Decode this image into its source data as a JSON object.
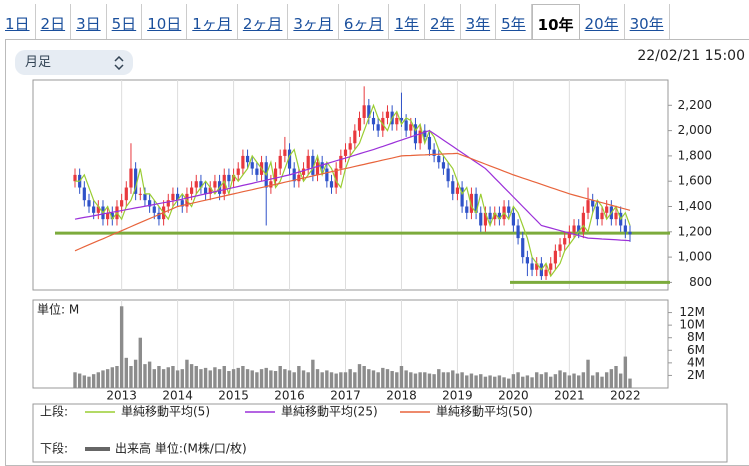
{
  "tabs": [
    "1日",
    "2日",
    "3日",
    "5日",
    "10日",
    "1ヶ月",
    "2ヶ月",
    "3ヶ月",
    "6ヶ月",
    "1年",
    "2年",
    "3年",
    "5年",
    "10年",
    "20年",
    "30年"
  ],
  "active_tab": 13,
  "timeframe": "月足",
  "timestamp": "22/02/21 15:00",
  "legend": {
    "upper_label": "上段:",
    "lower_label": "下段:"
  },
  "chart_data": [
    {
      "type": "candlestick",
      "categories": [
        null,
        null,
        null,
        null,
        null,
        null,
        null,
        null,
        null,
        null,
        "2013",
        null,
        null,
        null,
        null,
        null,
        null,
        null,
        null,
        null,
        null,
        null,
        "2014",
        null,
        null,
        null,
        null,
        null,
        null,
        null,
        null,
        null,
        null,
        null,
        "2015",
        null,
        null,
        null,
        null,
        null,
        null,
        null,
        null,
        null,
        null,
        null,
        "2016",
        null,
        null,
        null,
        null,
        null,
        null,
        null,
        null,
        null,
        null,
        null,
        "2017",
        null,
        null,
        null,
        null,
        null,
        null,
        null,
        null,
        null,
        null,
        null,
        "2018",
        null,
        null,
        null,
        null,
        null,
        null,
        null,
        null,
        null,
        null,
        null,
        "2019",
        null,
        null,
        null,
        null,
        null,
        null,
        null,
        null,
        null,
        null,
        null,
        "2020",
        null,
        null,
        null,
        null,
        null,
        null,
        null,
        null,
        null,
        null,
        null,
        "2021",
        null,
        null,
        null,
        null,
        null,
        null,
        null,
        null,
        null,
        null,
        null,
        "2022",
        null
      ],
      "open": [
        1600,
        1650,
        1550,
        1450,
        1400,
        1350,
        1400,
        1300,
        1350,
        1300,
        1400,
        1450,
        1550,
        1700,
        1500,
        1500,
        1450,
        1400,
        1350,
        1300,
        1400,
        1450,
        1500,
        1450,
        1400,
        1500,
        1550,
        1600,
        1550,
        1500,
        1550,
        1600,
        1500,
        1650,
        1600,
        1650,
        1700,
        1800,
        1750,
        1700,
        1650,
        1750,
        1550,
        1600,
        1700,
        1800,
        1850,
        1700,
        1600,
        1650,
        1700,
        1800,
        1650,
        1750,
        1700,
        1600,
        1550,
        1700,
        1800,
        1850,
        1900,
        2000,
        2100,
        2200,
        2100,
        2050,
        2000,
        2100,
        2150,
        2050,
        2100,
        2080,
        2000,
        2050,
        1900,
        2000,
        1950,
        1850,
        1800,
        1750,
        1700,
        1600,
        1500,
        1550,
        1400,
        1350,
        1500,
        1350,
        1250,
        1350,
        1300,
        1350,
        1300,
        1400,
        1350,
        1250,
        1150,
        1000,
        950,
        900,
        950,
        850,
        900,
        950,
        1050,
        1100,
        1150,
        1200,
        1250,
        1200,
        1350,
        1450,
        1400,
        1300,
        1350,
        1400,
        1300,
        1350,
        1250,
        1200
      ],
      "high": [
        1700,
        1700,
        1600,
        1500,
        1450,
        1450,
        1450,
        1400,
        1400,
        1450,
        1500,
        1600,
        1900,
        1750,
        1550,
        1550,
        1500,
        1450,
        1400,
        1450,
        1500,
        1550,
        1550,
        1500,
        1550,
        1600,
        1650,
        1650,
        1600,
        1600,
        1650,
        1650,
        1700,
        1700,
        1700,
        1750,
        1850,
        1850,
        1800,
        1750,
        1800,
        1800,
        1650,
        1750,
        1850,
        1950,
        1900,
        1750,
        1700,
        1750,
        1850,
        1850,
        1800,
        1800,
        1750,
        1650,
        1750,
        1850,
        1900,
        1950,
        2050,
        2150,
        2350,
        2250,
        2150,
        2100,
        2150,
        2200,
        2200,
        2150,
        2300,
        2130,
        2100,
        2100,
        2050,
        2050,
        2000,
        1900,
        1850,
        1800,
        1750,
        1650,
        1600,
        1600,
        1450,
        1550,
        1550,
        1400,
        1400,
        1400,
        1400,
        1400,
        1450,
        1450,
        1400,
        1300,
        1200,
        1050,
        1000,
        1000,
        1000,
        950,
        1000,
        1100,
        1150,
        1200,
        1250,
        1300,
        1300,
        1400,
        1550,
        1500,
        1450,
        1400,
        1450,
        1450,
        1400,
        1400,
        1300,
        1250
      ],
      "low": [
        1550,
        1500,
        1400,
        1350,
        1300,
        1300,
        1250,
        1250,
        1250,
        1250,
        1350,
        1400,
        1500,
        1450,
        1450,
        1400,
        1350,
        1300,
        1250,
        1250,
        1350,
        1400,
        1400,
        1350,
        1350,
        1450,
        1500,
        1500,
        1450,
        1450,
        1500,
        1450,
        1450,
        1550,
        1550,
        1600,
        1650,
        1700,
        1650,
        1600,
        1600,
        1250,
        1500,
        1550,
        1650,
        1750,
        1650,
        1550,
        1550,
        1600,
        1650,
        1600,
        1600,
        1650,
        1550,
        1500,
        1500,
        1650,
        1750,
        1800,
        1850,
        1950,
        2050,
        2050,
        2000,
        1950,
        1950,
        2050,
        2000,
        2000,
        2030,
        1950,
        1950,
        1850,
        1850,
        1900,
        1800,
        1750,
        1700,
        1650,
        1550,
        1450,
        1450,
        1350,
        1300,
        1300,
        1300,
        1200,
        1200,
        1250,
        1250,
        1250,
        1250,
        1300,
        1200,
        1100,
        950,
        850,
        850,
        850,
        820,
        820,
        850,
        900,
        1000,
        1050,
        1100,
        1150,
        1150,
        1150,
        1300,
        1350,
        1250,
        1250,
        1300,
        1250,
        1250,
        1200,
        1150,
        1120
      ],
      "close": [
        1650,
        1550,
        1450,
        1400,
        1350,
        1400,
        1300,
        1350,
        1300,
        1400,
        1450,
        1550,
        1700,
        1500,
        1500,
        1450,
        1400,
        1350,
        1300,
        1400,
        1450,
        1500,
        1450,
        1400,
        1500,
        1550,
        1600,
        1550,
        1500,
        1550,
        1600,
        1500,
        1650,
        1600,
        1650,
        1700,
        1800,
        1750,
        1700,
        1650,
        1750,
        1550,
        1600,
        1700,
        1800,
        1850,
        1700,
        1600,
        1650,
        1700,
        1800,
        1650,
        1750,
        1700,
        1600,
        1550,
        1700,
        1800,
        1850,
        1900,
        2000,
        2100,
        2200,
        2100,
        2050,
        2000,
        2100,
        2150,
        2050,
        2100,
        2080,
        2000,
        2050,
        1900,
        2000,
        1950,
        1850,
        1800,
        1750,
        1700,
        1600,
        1500,
        1550,
        1400,
        1350,
        1500,
        1350,
        1250,
        1350,
        1300,
        1350,
        1300,
        1400,
        1350,
        1250,
        1150,
        1000,
        950,
        900,
        950,
        850,
        900,
        950,
        1050,
        1100,
        1150,
        1200,
        1250,
        1200,
        1350,
        1450,
        1400,
        1300,
        1350,
        1400,
        1300,
        1350,
        1250,
        1200,
        1180
      ],
      "up_color": "#e8383d",
      "down_color": "#2f52c8",
      "series": [
        {
          "name": "単純移動平均(5)",
          "color": "#9acd32",
          "values": [
            1600,
            1600,
            1650,
            1550,
            1450,
            1400,
            1350,
            1400,
            1300,
            1350,
            1300,
            1400,
            1450,
            1550,
            1700,
            1500,
            1500,
            1450,
            1400,
            1350,
            1300,
            1400,
            1450,
            1500,
            1450,
            1400,
            1500,
            1550,
            1600,
            1550,
            1500,
            1550,
            1600,
            1500,
            1650,
            1600,
            1650,
            1700,
            1800,
            1750,
            1700,
            1650,
            1750,
            1550,
            1600,
            1700,
            1800,
            1850,
            1700,
            1600,
            1650,
            1700,
            1800,
            1650,
            1750,
            1700,
            1600,
            1550,
            1700,
            1800,
            1850,
            1900,
            2000,
            2100,
            2200,
            2100,
            2050,
            2000,
            2100,
            2150,
            2050,
            2100,
            2080,
            2000,
            2050,
            1900,
            2000,
            1950,
            1850,
            1800,
            1750,
            1700,
            1600,
            1500,
            1550,
            1400,
            1350,
            1500,
            1350,
            1250,
            1350,
            1300,
            1350,
            1300,
            1400,
            1350,
            1250,
            1150,
            1000,
            950,
            900,
            950,
            850,
            900,
            950,
            1050,
            1100,
            1150,
            1200,
            1250,
            1200,
            1350,
            1450,
            1400,
            1300,
            1350,
            1400,
            1300,
            1350,
            1250
          ]
        },
        {
          "name": "単純移動平均(25)",
          "color": "#9b30d9",
          "values": [
            1300,
            1307,
            1314,
            1320,
            1327,
            1334,
            1341,
            1348,
            1355,
            1361,
            1368,
            1375,
            1382,
            1389,
            1395,
            1402,
            1409,
            1416,
            1423,
            1430,
            1436,
            1443,
            1450,
            1458,
            1467,
            1475,
            1483,
            1492,
            1500,
            1508,
            1517,
            1525,
            1533,
            1542,
            1550,
            1558,
            1567,
            1575,
            1583,
            1592,
            1600,
            1608,
            1617,
            1625,
            1633,
            1642,
            1650,
            1661,
            1672,
            1683,
            1694,
            1706,
            1717,
            1728,
            1739,
            1750,
            1761,
            1772,
            1783,
            1794,
            1806,
            1817,
            1828,
            1839,
            1850,
            1863,
            1875,
            1888,
            1900,
            1913,
            1925,
            1938,
            1950,
            1963,
            1975,
            1988,
            2000,
            1975,
            1950,
            1925,
            1900,
            1875,
            1850,
            1825,
            1800,
            1775,
            1750,
            1725,
            1700,
            1663,
            1625,
            1588,
            1550,
            1513,
            1475,
            1438,
            1400,
            1363,
            1325,
            1288,
            1250,
            1240,
            1230,
            1220,
            1210,
            1200,
            1190,
            1180,
            1170,
            1160,
            1150,
            1148,
            1146,
            1143,
            1141,
            1139,
            1137,
            1134,
            1132,
            1130
          ]
        },
        {
          "name": "単純移動平均(50)",
          "color": "#e8643c",
          "values": [
            1050,
            1066,
            1082,
            1098,
            1114,
            1130,
            1145,
            1161,
            1177,
            1193,
            1209,
            1225,
            1241,
            1257,
            1273,
            1289,
            1305,
            1320,
            1336,
            1352,
            1368,
            1384,
            1400,
            1408,
            1417,
            1425,
            1433,
            1442,
            1450,
            1458,
            1467,
            1475,
            1483,
            1492,
            1500,
            1508,
            1517,
            1525,
            1533,
            1542,
            1550,
            1558,
            1567,
            1575,
            1583,
            1592,
            1600,
            1608,
            1617,
            1625,
            1633,
            1642,
            1650,
            1658,
            1667,
            1675,
            1683,
            1692,
            1700,
            1708,
            1717,
            1725,
            1733,
            1742,
            1750,
            1758,
            1767,
            1775,
            1783,
            1792,
            1800,
            1802,
            1803,
            1805,
            1807,
            1808,
            1810,
            1812,
            1813,
            1815,
            1817,
            1818,
            1820,
            1806,
            1792,
            1778,
            1763,
            1749,
            1735,
            1721,
            1707,
            1693,
            1678,
            1664,
            1650,
            1638,
            1625,
            1613,
            1600,
            1588,
            1575,
            1563,
            1550,
            1538,
            1525,
            1513,
            1500,
            1490,
            1480,
            1470,
            1460,
            1450,
            1440,
            1430,
            1420,
            1410,
            1400,
            1390,
            1380,
            1370
          ]
        }
      ],
      "ylim": [
        740,
        2400
      ],
      "yticks": [
        800,
        {
          "value": 1000,
          "label": "1,000"
        },
        {
          "value": 1200,
          "label": "1,200"
        },
        {
          "value": 1400,
          "label": "1,400"
        },
        {
          "value": 1600,
          "label": "1,600"
        },
        {
          "value": 1800,
          "label": "1,800"
        },
        {
          "value": 2000,
          "label": "2,000"
        },
        {
          "value": 2200,
          "label": "2,200"
        }
      ],
      "hlines": [
        1190,
        800
      ],
      "hline_color": "#7cab3c",
      "grid": true
    },
    {
      "type": "bar",
      "title": "単位: M",
      "series": [
        {
          "name": "出来高 単位:(M株/口/枚)",
          "color": "#8c8c8c",
          "values": [
            2.5,
            2.3,
            2,
            1.8,
            2.2,
            2.5,
            2.8,
            3,
            3.3,
            3.5,
            13,
            4.8,
            3.5,
            4.5,
            8,
            3.8,
            4.2,
            3,
            3.5,
            3,
            3.3,
            3.5,
            2.8,
            3,
            4.5,
            3.8,
            3.5,
            3,
            3.2,
            2.8,
            3.3,
            3,
            3.5,
            2.7,
            3,
            3.2,
            3.5,
            3,
            2.8,
            2.5,
            3,
            3.2,
            2.8,
            2.7,
            3.5,
            3,
            2.8,
            2.5,
            3.5,
            2.8,
            2.5,
            4.5,
            3,
            2.5,
            2.8,
            2.5,
            2.3,
            2.5,
            2.5,
            3,
            2.5,
            3.8,
            3.5,
            3,
            2.8,
            2.5,
            3.2,
            3,
            2.7,
            2.5,
            3.5,
            2.8,
            2.5,
            2.3,
            2.5,
            2.5,
            2.3,
            2.2,
            3,
            2.5,
            2.5,
            2.8,
            2.3,
            2.5,
            2,
            2.3,
            2,
            2.2,
            1.8,
            2,
            1.8,
            2,
            1.7,
            1.5,
            2.2,
            2.5,
            1.8,
            2,
            1.7,
            2.5,
            2.2,
            2.5,
            1.8,
            2.2,
            2.8,
            2.5,
            2,
            2.3,
            2,
            2.5,
            4.5,
            2,
            2.5,
            1.8,
            2.5,
            3,
            3.5,
            2.3,
            5,
            1.5
          ]
        }
      ],
      "ylim": [
        0,
        14
      ],
      "yticks": [
        {
          "value": 2,
          "label": "2M"
        },
        {
          "value": 4,
          "label": "4M"
        },
        {
          "value": 6,
          "label": "6M"
        },
        {
          "value": 8,
          "label": "8M"
        },
        {
          "value": 10,
          "label": "10M"
        },
        {
          "value": 12,
          "label": "12M"
        }
      ]
    }
  ]
}
